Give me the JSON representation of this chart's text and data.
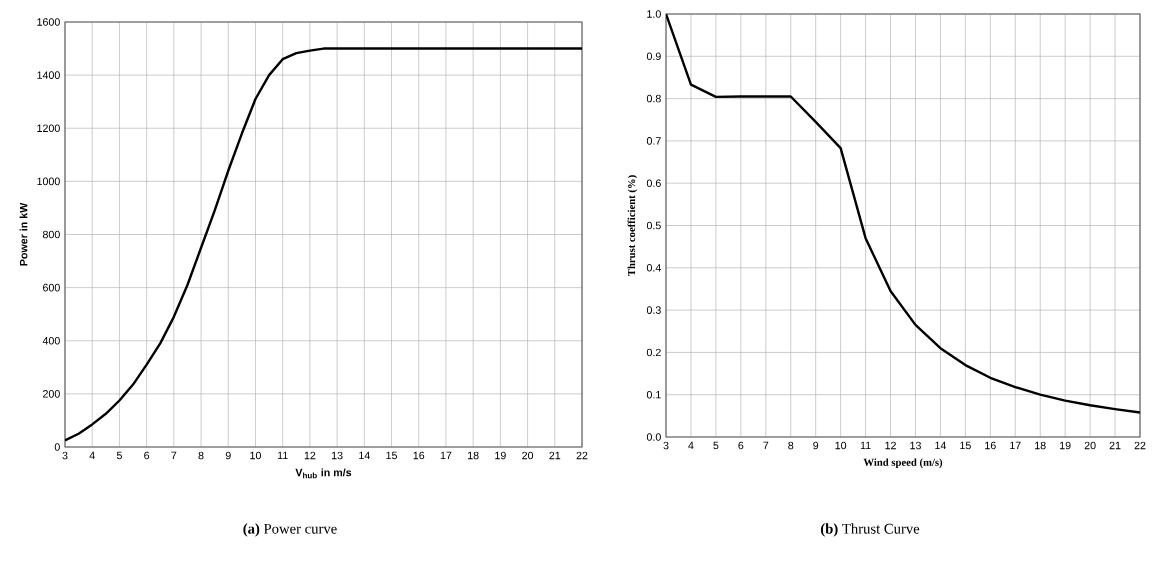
{
  "chart_data": [
    {
      "type": "line",
      "xlabel": "V$_{hub}$ in m/s",
      "ylabel": "Power in kW",
      "annotations": [
        "**(a)** Power curve"
      ],
      "color": "#000000",
      "marker": "none",
      "line_style": "solid",
      "grid": true,
      "x": [
        3,
        3.5,
        4,
        4.5,
        5,
        5.5,
        6,
        6.5,
        7,
        7.5,
        8,
        8.5,
        9,
        9.5,
        10,
        10.5,
        11,
        11.5,
        12,
        12.5,
        22
      ],
      "values": [
        25,
        50,
        85,
        125,
        175,
        235,
        310,
        390,
        490,
        610,
        750,
        890,
        1040,
        1180,
        1310,
        1400,
        1460,
        1483,
        1492,
        1500,
        1500
      ],
      "xlim": [
        3,
        22
      ],
      "ylim": [
        0,
        1600
      ],
      "xticks": [
        3,
        4,
        5,
        6,
        7,
        8,
        9,
        10,
        11,
        12,
        13,
        14,
        15,
        16,
        17,
        18,
        19,
        20,
        21,
        22
      ],
      "yticks": [
        0,
        200,
        400,
        600,
        800,
        1000,
        1200,
        1400,
        1600
      ]
    },
    {
      "type": "line",
      "xlabel": "Wind speed (m/s)",
      "ylabel": "Thrust coefficient (%)",
      "annotations": [
        "**(b)** Thrust Curve"
      ],
      "color": "#000000",
      "marker": "none",
      "line_style": "solid",
      "grid": true,
      "x": [
        3,
        4,
        5,
        6,
        7,
        8,
        9,
        10,
        11,
        12,
        13,
        14,
        15,
        16,
        17,
        18,
        19,
        20,
        21,
        22
      ],
      "values": [
        1.0,
        0.833,
        0.804,
        0.805,
        0.805,
        0.805,
        0.745,
        0.683,
        0.47,
        0.345,
        0.265,
        0.21,
        0.17,
        0.14,
        0.118,
        0.1,
        0.086,
        0.075,
        0.066,
        0.058
      ],
      "xlim": [
        3,
        22
      ],
      "ylim": [
        0,
        1
      ],
      "xticks": [
        3,
        4,
        5,
        6,
        7,
        8,
        9,
        10,
        11,
        12,
        13,
        14,
        15,
        16,
        17,
        18,
        19,
        20,
        21,
        22
      ],
      "yticks": [
        {
          "value": 0,
          "label": "0.0"
        },
        0.1,
        0.2,
        0.3,
        0.4,
        0.5,
        0.6,
        0.7,
        0.8,
        0.9,
        {
          "value": 1,
          "label": "1.0"
        }
      ]
    }
  ]
}
